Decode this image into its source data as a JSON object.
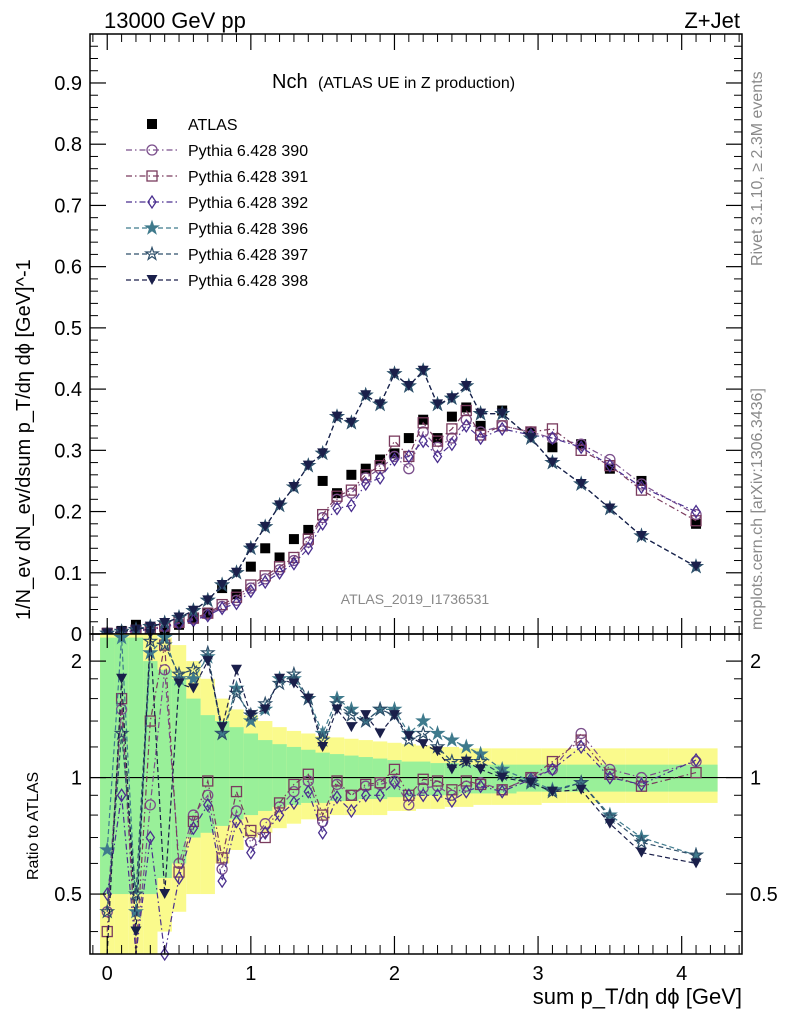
{
  "header": {
    "left": "13000 GeV pp",
    "right": "Z+Jet"
  },
  "side_labels": {
    "rivet": "Rivet 3.1.10, ≥ 2.3M events",
    "mcplots": "mcplots.cern.ch [arXiv:1306.3436]"
  },
  "watermark": "ATLAS_2019_I1736531",
  "colors": {
    "ATLAS": "#000000",
    "390": "#7b4f8c",
    "391": "#7a3b5e",
    "392": "#4a2f8f",
    "396": "#3f7a8c",
    "397": "#2f4f6a",
    "398": "#1a1f4a",
    "band_inner": "#99f099",
    "band_outer": "#fafa8c"
  },
  "chart_data": [
    {
      "type": "scatter",
      "title": "Nch",
      "subtitle": "(ATLAS UE in Z production)",
      "ylabel": "1/N_ev dN_ev/dsum p_T/dη dϕ [GeV]^-1",
      "xlim": [
        -0.12,
        4.42
      ],
      "ylim": [
        0,
        0.98
      ],
      "yticks": [
        "0",
        "0.1",
        "0.2",
        "0.3",
        "0.4",
        "0.5",
        "0.6",
        "0.7",
        "0.8",
        "0.9"
      ],
      "x": [
        0.0,
        0.1,
        0.2,
        0.3,
        0.4,
        0.5,
        0.6,
        0.7,
        0.8,
        0.9,
        1.0,
        1.1,
        1.2,
        1.3,
        1.4,
        1.5,
        1.6,
        1.7,
        1.8,
        1.9,
        2.0,
        2.1,
        2.2,
        2.3,
        2.4,
        2.5,
        2.6,
        2.75,
        2.95,
        3.1,
        3.3,
        3.5,
        3.72,
        4.1
      ],
      "legend": [
        "ATLAS",
        "Pythia 6.428 390",
        "Pythia 6.428 391",
        "Pythia 6.428 392",
        "Pythia 6.428 396",
        "Pythia 6.428 397",
        "Pythia 6.428 398"
      ],
      "series": [
        {
          "name": "ATLAS",
          "marker": "square",
          "values": [
            0.002,
            0.005,
            0.015,
            0.01,
            0.005,
            0.015,
            0.025,
            0.035,
            0.075,
            0.065,
            0.11,
            0.14,
            0.125,
            0.155,
            0.17,
            0.25,
            0.23,
            0.26,
            0.27,
            0.285,
            0.295,
            0.32,
            0.35,
            0.32,
            0.355,
            0.37,
            0.34,
            0.365,
            0.33,
            0.305,
            0.31,
            0.27,
            0.25,
            0.18
          ]
        },
        {
          "name": "Pythia 6.428 390",
          "marker": "circle",
          "values": [
            0.001,
            0.003,
            0.005,
            0.008,
            0.012,
            0.018,
            0.024,
            0.032,
            0.045,
            0.055,
            0.075,
            0.09,
            0.105,
            0.12,
            0.15,
            0.19,
            0.22,
            0.23,
            0.255,
            0.27,
            0.29,
            0.27,
            0.33,
            0.305,
            0.32,
            0.35,
            0.33,
            0.34,
            0.33,
            0.32,
            0.31,
            0.285,
            0.245,
            0.195
          ]
        },
        {
          "name": "Pythia 6.428 391",
          "marker": "square-open",
          "values": [
            0.001,
            0.003,
            0.006,
            0.009,
            0.013,
            0.019,
            0.026,
            0.034,
            0.048,
            0.06,
            0.08,
            0.095,
            0.11,
            0.125,
            0.155,
            0.195,
            0.225,
            0.235,
            0.26,
            0.275,
            0.315,
            0.29,
            0.345,
            0.315,
            0.335,
            0.365,
            0.325,
            0.34,
            0.33,
            0.335,
            0.3,
            0.275,
            0.235,
            0.185
          ]
        },
        {
          "name": "Pythia 6.428 392",
          "marker": "diamond",
          "values": [
            0.001,
            0.003,
            0.005,
            0.007,
            0.011,
            0.017,
            0.022,
            0.03,
            0.042,
            0.05,
            0.07,
            0.085,
            0.1,
            0.115,
            0.14,
            0.18,
            0.205,
            0.21,
            0.245,
            0.255,
            0.285,
            0.29,
            0.315,
            0.29,
            0.31,
            0.34,
            0.32,
            0.335,
            0.325,
            0.32,
            0.305,
            0.275,
            0.24,
            0.2
          ]
        },
        {
          "name": "Pythia 6.428 396",
          "marker": "star",
          "values": [
            0.001,
            0.004,
            0.007,
            0.012,
            0.018,
            0.027,
            0.038,
            0.055,
            0.08,
            0.1,
            0.14,
            0.175,
            0.21,
            0.24,
            0.275,
            0.295,
            0.355,
            0.345,
            0.39,
            0.375,
            0.425,
            0.405,
            0.43,
            0.375,
            0.385,
            0.405,
            0.36,
            0.36,
            0.32,
            0.28,
            0.245,
            0.205,
            0.16,
            0.11
          ]
        },
        {
          "name": "Pythia 6.428 397",
          "marker": "star-open",
          "values": [
            0.001,
            0.004,
            0.007,
            0.012,
            0.018,
            0.027,
            0.038,
            0.055,
            0.08,
            0.1,
            0.14,
            0.175,
            0.21,
            0.24,
            0.275,
            0.295,
            0.355,
            0.345,
            0.39,
            0.375,
            0.425,
            0.405,
            0.43,
            0.375,
            0.385,
            0.405,
            0.36,
            0.36,
            0.32,
            0.28,
            0.245,
            0.205,
            0.16,
            0.11
          ]
        },
        {
          "name": "Pythia 6.428 398",
          "marker": "triangle-down",
          "values": [
            0.001,
            0.004,
            0.007,
            0.012,
            0.018,
            0.027,
            0.038,
            0.055,
            0.08,
            0.1,
            0.14,
            0.175,
            0.21,
            0.24,
            0.275,
            0.295,
            0.355,
            0.345,
            0.39,
            0.375,
            0.425,
            0.405,
            0.43,
            0.375,
            0.385,
            0.405,
            0.36,
            0.36,
            0.32,
            0.28,
            0.245,
            0.205,
            0.16,
            0.11
          ]
        }
      ]
    },
    {
      "type": "scatter",
      "ylabel": "Ratio to ATLAS",
      "xlabel": "sum p_T/dη dϕ [GeV]",
      "xlim": [
        -0.12,
        4.42
      ],
      "ylim": [
        0.35,
        2.35
      ],
      "log_scale_y": true,
      "yticks": [
        {
          "value": 0.5,
          "label": "0.5"
        },
        {
          "value": 1,
          "label": "1"
        },
        {
          "value": 2,
          "label": "2"
        }
      ],
      "xticks": [
        "0",
        "1",
        "2",
        "3",
        "4"
      ],
      "x": [
        0.0,
        0.1,
        0.2,
        0.3,
        0.4,
        0.5,
        0.6,
        0.7,
        0.8,
        0.9,
        1.0,
        1.1,
        1.2,
        1.3,
        1.4,
        1.5,
        1.6,
        1.7,
        1.8,
        1.9,
        2.0,
        2.1,
        2.2,
        2.3,
        2.4,
        2.5,
        2.6,
        2.75,
        2.95,
        3.1,
        3.3,
        3.5,
        3.72,
        4.1
      ],
      "band_inner": [
        0.5,
        0.5,
        0.5,
        0.5,
        0.55,
        0.6,
        0.7,
        0.72,
        0.75,
        0.78,
        0.8,
        0.82,
        0.84,
        0.85,
        0.86,
        0.86,
        0.87,
        0.87,
        0.88,
        0.88,
        0.89,
        0.89,
        0.9,
        0.9,
        0.9,
        0.91,
        0.91,
        0.91,
        0.92,
        0.92,
        0.92,
        0.92,
        0.92,
        0.92
      ],
      "band_inner_hi": [
        2.3,
        2.3,
        2.3,
        2.0,
        1.9,
        1.8,
        1.6,
        1.45,
        1.4,
        1.35,
        1.3,
        1.25,
        1.22,
        1.2,
        1.18,
        1.16,
        1.15,
        1.14,
        1.13,
        1.12,
        1.11,
        1.1,
        1.1,
        1.09,
        1.09,
        1.08,
        1.08,
        1.08,
        1.08,
        1.08,
        1.08,
        1.08,
        1.08,
        1.08
      ],
      "band_outer": [
        0.35,
        0.35,
        0.35,
        0.35,
        0.4,
        0.45,
        0.5,
        0.5,
        0.6,
        0.65,
        0.7,
        0.72,
        0.74,
        0.76,
        0.78,
        0.78,
        0.8,
        0.8,
        0.8,
        0.8,
        0.82,
        0.82,
        0.83,
        0.83,
        0.84,
        0.84,
        0.85,
        0.85,
        0.85,
        0.86,
        0.86,
        0.86,
        0.86,
        0.86
      ],
      "band_outer_hi": [
        2.35,
        2.35,
        2.35,
        2.35,
        2.3,
        2.2,
        2.0,
        1.8,
        1.6,
        1.5,
        1.45,
        1.4,
        1.35,
        1.32,
        1.3,
        1.28,
        1.27,
        1.26,
        1.25,
        1.24,
        1.23,
        1.22,
        1.21,
        1.2,
        1.2,
        1.19,
        1.19,
        1.19,
        1.19,
        1.19,
        1.19,
        1.19,
        1.19,
        1.19
      ],
      "series": [
        {
          "name": "Pythia 6.428 390",
          "values": [
            0.45,
            1.5,
            0.33,
            0.85,
            1.9,
            0.6,
            0.8,
            0.9,
            0.58,
            0.82,
            0.68,
            0.76,
            0.84,
            0.92,
            0.98,
            0.77,
            0.96,
            0.9,
            0.95,
            0.96,
            0.98,
            0.85,
            0.94,
            0.95,
            0.9,
            0.95,
            0.97,
            0.93,
            1.0,
            1.05,
            1.3,
            1.05,
            1.0,
            1.1
          ]
        },
        {
          "name": "Pythia 6.428 391",
          "values": [
            0.4,
            1.6,
            0.3,
            1.4,
            2.2,
            0.57,
            0.77,
            0.98,
            0.62,
            0.92,
            0.73,
            0.7,
            0.86,
            0.96,
            1.02,
            0.8,
            0.98,
            0.9,
            0.96,
            0.97,
            1.05,
            0.9,
            0.99,
            0.98,
            0.93,
            0.98,
            0.96,
            0.93,
            1.0,
            1.1,
            1.25,
            1.02,
            0.95,
            1.03
          ]
        },
        {
          "name": "Pythia 6.428 392",
          "values": [
            0.5,
            0.9,
            0.34,
            0.7,
            0.35,
            0.55,
            0.74,
            0.85,
            0.54,
            0.77,
            0.64,
            0.72,
            0.8,
            0.86,
            0.92,
            0.72,
            0.89,
            0.82,
            0.9,
            0.9,
            0.97,
            0.9,
            0.9,
            0.9,
            0.87,
            0.92,
            0.95,
            0.92,
            0.99,
            1.05,
            1.2,
            1.0,
            0.96,
            1.11
          ]
        },
        {
          "name": "Pythia 6.428 396",
          "values": [
            0.65,
            2.3,
            0.45,
            2.1,
            2.3,
            1.8,
            1.8,
            2.05,
            1.3,
            1.7,
            1.4,
            1.5,
            1.8,
            1.8,
            1.6,
            1.3,
            1.6,
            1.5,
            1.4,
            1.5,
            1.5,
            1.3,
            1.4,
            1.3,
            1.25,
            1.2,
            1.15,
            1.05,
            0.98,
            0.93,
            0.97,
            0.8,
            0.7,
            0.63
          ]
        },
        {
          "name": "Pythia 6.428 397",
          "values": [
            0.45,
            1.3,
            0.5,
            2.25,
            2.2,
            1.85,
            1.9,
            2.1,
            1.3,
            1.65,
            1.45,
            1.55,
            1.75,
            1.85,
            1.6,
            1.25,
            1.55,
            1.45,
            1.4,
            1.5,
            1.45,
            1.25,
            1.3,
            1.2,
            1.1,
            1.1,
            1.1,
            1.02,
            0.97,
            0.92,
            0.97,
            0.79,
            0.68,
            0.63
          ]
        },
        {
          "name": "Pythia 6.428 398",
          "values": [
            0.3,
            1.8,
            0.4,
            2.35,
            0.5,
            1.75,
            1.7,
            2.0,
            1.35,
            1.9,
            1.45,
            1.5,
            1.8,
            1.75,
            1.6,
            1.2,
            1.5,
            1.35,
            1.45,
            1.3,
            1.45,
            1.28,
            1.22,
            1.17,
            1.05,
            1.1,
            1.05,
            1.0,
            0.97,
            0.92,
            0.93,
            0.76,
            0.64,
            0.6
          ]
        }
      ]
    }
  ]
}
